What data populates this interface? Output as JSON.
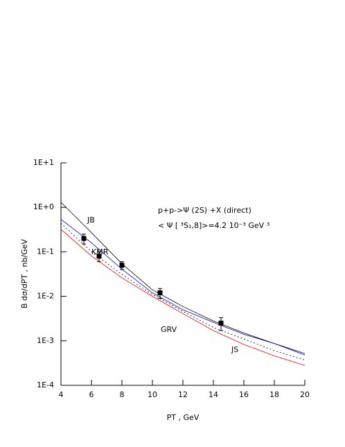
{
  "chart_data": {
    "type": "line",
    "xlabel": "PT , GeV",
    "ylabel": "B  dσ/dPT , nb/GeV",
    "annotations": [
      "p+p->Ψ (2S) +X (direct)",
      "< Ψ [ ³S₁,8]>=4.2 10⁻³ GeV ³"
    ],
    "log_y": true,
    "xlim": [
      4,
      20
    ],
    "ylim": [
      0.0001,
      10
    ],
    "xticks": [
      4,
      6,
      8,
      10,
      12,
      14,
      16,
      18,
      20
    ],
    "yticks": [
      {
        "value": 10,
        "label": "1E+1"
      },
      {
        "value": 1,
        "label": "1E+0"
      },
      {
        "value": 0.1,
        "label": "1E-1"
      },
      {
        "value": 0.01,
        "label": "1E-2"
      },
      {
        "value": 0.001,
        "label": "1E-3"
      },
      {
        "value": 0.0001,
        "label": "1E-4"
      }
    ],
    "x": [
      4,
      6,
      8,
      10,
      12,
      14,
      16,
      18,
      20
    ],
    "series": [
      {
        "name": "JB",
        "color": "#000000",
        "style": "solid",
        "values": [
          1.3,
          0.27,
          0.054,
          0.014,
          0.0059,
          0.0028,
          0.0015,
          0.00087,
          0.00048
        ]
      },
      {
        "name": "KMR",
        "color": "#0000cc",
        "style": "solid",
        "values": [
          0.54,
          0.16,
          0.041,
          0.012,
          0.005,
          0.0026,
          0.0014,
          0.00087,
          0.00052
        ]
      },
      {
        "name": "GRV",
        "color": "#000000",
        "style": "dotted",
        "values": [
          0.44,
          0.1,
          0.031,
          0.011,
          0.0046,
          0.002,
          0.0011,
          0.0006,
          0.00037
        ]
      },
      {
        "name": "JS",
        "color": "#ff0000",
        "style": "solid",
        "values": [
          0.32,
          0.081,
          0.026,
          0.01,
          0.0041,
          0.0017,
          0.00083,
          0.00046,
          0.00028
        ]
      }
    ],
    "points": {
      "x": [
        5.5,
        6.5,
        8,
        10.5,
        14.5
      ],
      "values": [
        0.2,
        0.08,
        0.05,
        0.012,
        0.0025
      ],
      "errors": [
        0.05,
        0.02,
        0.01,
        0.003,
        0.0008
      ],
      "color": "#000000"
    }
  }
}
